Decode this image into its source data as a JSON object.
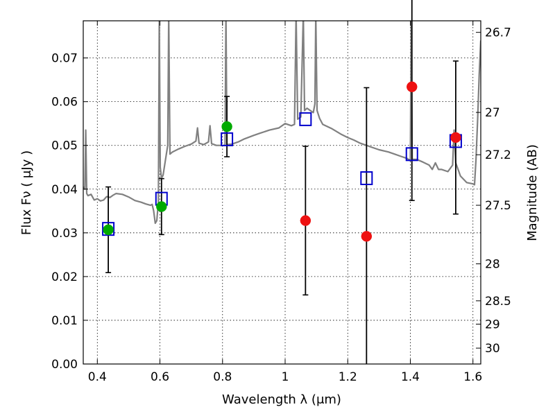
{
  "chart_data": {
    "type": "scatter",
    "xlabel": "Wavelength  λ (μm)",
    "ylabel": "Flux  Fν  ( μJy )",
    "y2label": "Magnitude (AB)",
    "xlim": [
      0.355,
      1.625
    ],
    "ylim": [
      0.0,
      0.0785
    ],
    "grid": true,
    "x_ticks": [
      0.4,
      0.6,
      0.8,
      1.0,
      1.2,
      1.4,
      1.6
    ],
    "x_tick_labels": [
      "0.4",
      "0.6",
      "0.8",
      "1",
      "1.2",
      "1.4",
      "1.6"
    ],
    "y_ticks": [
      0.0,
      0.01,
      0.02,
      0.03,
      0.04,
      0.05,
      0.06,
      0.07
    ],
    "y_tick_labels": [
      "0.00",
      "0.01",
      "0.02",
      "0.03",
      "0.04",
      "0.05",
      "0.06",
      "0.07"
    ],
    "mag_ticks": [
      26.7,
      27,
      27.2,
      27.5,
      28,
      28.5,
      29,
      30
    ],
    "mag_tick_labels": [
      "26.7",
      "27",
      "27.2",
      "27.5",
      "28",
      "28.5",
      "29",
      "30"
    ],
    "colors": {
      "model": "#808080",
      "green": "#00aa00",
      "red": "#ee1111",
      "model_box": "#0000cc",
      "errorbar": "#000000"
    },
    "model_sed": [
      [
        0.355,
        0.0405
      ],
      [
        0.36,
        0.04
      ],
      [
        0.363,
        0.0535
      ],
      [
        0.366,
        0.039
      ],
      [
        0.37,
        0.0385
      ],
      [
        0.38,
        0.0388
      ],
      [
        0.39,
        0.0375
      ],
      [
        0.4,
        0.0378
      ],
      [
        0.41,
        0.0373
      ],
      [
        0.42,
        0.0375
      ],
      [
        0.43,
        0.0383
      ],
      [
        0.44,
        0.0381
      ],
      [
        0.45,
        0.0386
      ],
      [
        0.46,
        0.039
      ],
      [
        0.48,
        0.0388
      ],
      [
        0.5,
        0.0382
      ],
      [
        0.52,
        0.0374
      ],
      [
        0.54,
        0.037
      ],
      [
        0.555,
        0.0366
      ],
      [
        0.57,
        0.0363
      ],
      [
        0.575,
        0.0365
      ],
      [
        0.58,
        0.035
      ],
      [
        0.585,
        0.0322
      ],
      [
        0.59,
        0.0328
      ],
      [
        0.595,
        0.037
      ],
      [
        0.598,
        0.08
      ],
      [
        0.601,
        0.045
      ],
      [
        0.605,
        0.0425
      ],
      [
        0.61,
        0.0432
      ],
      [
        0.62,
        0.0478
      ],
      [
        0.625,
        0.05
      ],
      [
        0.628,
        0.08
      ],
      [
        0.632,
        0.048
      ],
      [
        0.64,
        0.0485
      ],
      [
        0.66,
        0.0492
      ],
      [
        0.68,
        0.0498
      ],
      [
        0.7,
        0.0503
      ],
      [
        0.715,
        0.051
      ],
      [
        0.72,
        0.054
      ],
      [
        0.725,
        0.0505
      ],
      [
        0.74,
        0.0502
      ],
      [
        0.755,
        0.0508
      ],
      [
        0.76,
        0.0545
      ],
      [
        0.765,
        0.0504
      ],
      [
        0.78,
        0.05
      ],
      [
        0.8,
        0.05
      ],
      [
        0.808,
        0.05
      ],
      [
        0.811,
        0.08
      ],
      [
        0.814,
        0.0502
      ],
      [
        0.83,
        0.0503
      ],
      [
        0.85,
        0.0508
      ],
      [
        0.87,
        0.0515
      ],
      [
        0.9,
        0.0523
      ],
      [
        0.92,
        0.0528
      ],
      [
        0.95,
        0.0535
      ],
      [
        0.98,
        0.054
      ],
      [
        1.0,
        0.055
      ],
      [
        1.02,
        0.0545
      ],
      [
        1.03,
        0.0548
      ],
      [
        1.035,
        0.08
      ],
      [
        1.04,
        0.056
      ],
      [
        1.05,
        0.0565
      ],
      [
        1.058,
        0.08
      ],
      [
        1.062,
        0.058
      ],
      [
        1.07,
        0.0585
      ],
      [
        1.08,
        0.058
      ],
      [
        1.09,
        0.0575
      ],
      [
        1.095,
        0.0595
      ],
      [
        1.098,
        0.08
      ],
      [
        1.102,
        0.058
      ],
      [
        1.11,
        0.0562
      ],
      [
        1.12,
        0.0548
      ],
      [
        1.15,
        0.0538
      ],
      [
        1.18,
        0.0525
      ],
      [
        1.2,
        0.0518
      ],
      [
        1.22,
        0.0512
      ],
      [
        1.24,
        0.0505
      ],
      [
        1.26,
        0.05
      ],
      [
        1.28,
        0.0495
      ],
      [
        1.3,
        0.049
      ],
      [
        1.33,
        0.0485
      ],
      [
        1.35,
        0.048
      ],
      [
        1.37,
        0.0475
      ],
      [
        1.39,
        0.047
      ],
      [
        1.4,
        0.0465
      ],
      [
        1.403,
        0.08
      ],
      [
        1.406,
        0.0468
      ],
      [
        1.42,
        0.0468
      ],
      [
        1.44,
        0.0462
      ],
      [
        1.46,
        0.0455
      ],
      [
        1.47,
        0.0445
      ],
      [
        1.48,
        0.046
      ],
      [
        1.49,
        0.0445
      ],
      [
        1.5,
        0.0445
      ],
      [
        1.52,
        0.044
      ],
      [
        1.535,
        0.0455
      ],
      [
        1.54,
        0.0535
      ],
      [
        1.545,
        0.046
      ],
      [
        1.56,
        0.043
      ],
      [
        1.58,
        0.0415
      ],
      [
        1.6,
        0.0412
      ],
      [
        1.605,
        0.041
      ],
      [
        1.61,
        0.047
      ],
      [
        1.615,
        0.056
      ],
      [
        1.62,
        0.066
      ],
      [
        1.625,
        0.074
      ]
    ],
    "model_boxes": [
      {
        "x": 0.435,
        "y": 0.0309
      },
      {
        "x": 0.605,
        "y": 0.0378
      },
      {
        "x": 0.814,
        "y": 0.0514
      },
      {
        "x": 1.065,
        "y": 0.056
      },
      {
        "x": 1.26,
        "y": 0.0425
      },
      {
        "x": 1.405,
        "y": 0.048
      },
      {
        "x": 1.545,
        "y": 0.051
      }
    ],
    "measured": [
      {
        "x": 0.435,
        "y": 0.0307,
        "err": 0.0098,
        "color": "green"
      },
      {
        "x": 0.605,
        "y": 0.036,
        "err": 0.0064,
        "color": "green"
      },
      {
        "x": 0.814,
        "y": 0.0543,
        "err": 0.0069,
        "color": "green"
      },
      {
        "x": 1.065,
        "y": 0.0328,
        "err": 0.017,
        "color": "red"
      },
      {
        "x": 1.26,
        "y": 0.0292,
        "err": 0.034,
        "color": "red"
      },
      {
        "x": 1.405,
        "y": 0.0634,
        "err": 0.026,
        "color": "red"
      },
      {
        "x": 1.545,
        "y": 0.0518,
        "err": 0.0175,
        "color": "red"
      }
    ]
  }
}
